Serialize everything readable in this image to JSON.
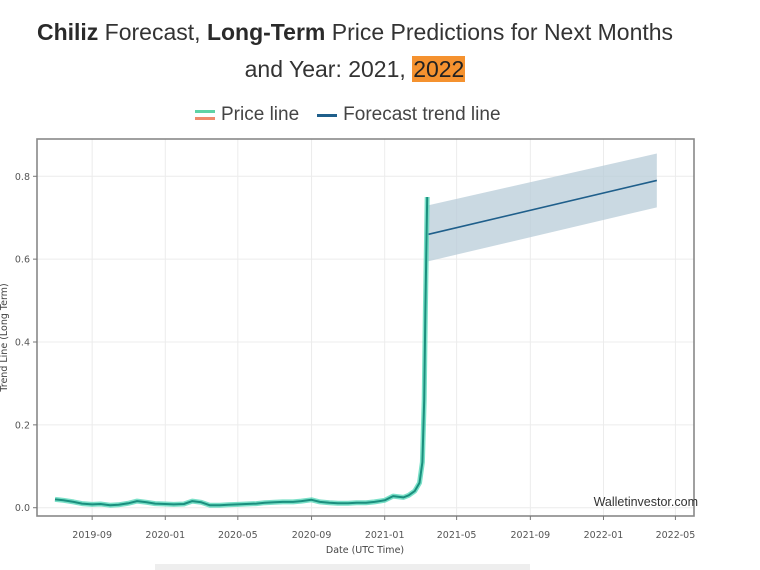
{
  "header": {
    "title_parts": [
      {
        "text": "Chiliz",
        "style": "bold"
      },
      {
        "text": " Forecast, ",
        "style": "normal"
      },
      {
        "text": "Long-Term",
        "style": "bold"
      },
      {
        "text": " Price Predictions for Next Months",
        "style": "normal"
      },
      {
        "text": "and Year: 2021, ",
        "style": "normal",
        "newline": true
      },
      {
        "text": "2022",
        "style": "highlight"
      }
    ],
    "highlight_color": "#f5922f"
  },
  "legend": {
    "items": [
      {
        "label": "Price line",
        "colors": [
          "#5fd3a6",
          "#f08a6c"
        ]
      },
      {
        "label": "Forecast trend line",
        "colors": [
          "#1f5f8b"
        ]
      }
    ]
  },
  "chart_data": {
    "type": "line",
    "title": "Chiliz Forecast, Long-Term Price Predictions for Next Months and Year: 2021, 2022",
    "xlabel": "Date (UTC Time)",
    "ylabel": "Trend Line (Long Term)",
    "ylim": [
      -0.02,
      0.89
    ],
    "xlim": [
      "2019-06-01",
      "2022-06-01"
    ],
    "yticks": [
      0.0,
      0.2,
      0.4,
      0.6,
      0.8
    ],
    "ytick_labels": [
      "0.0",
      "0.2",
      "0.4",
      "0.6",
      "0.8"
    ],
    "xticks": [
      "2019-09",
      "2020-01",
      "2020-05",
      "2020-09",
      "2021-01",
      "2021-05",
      "2021-09",
      "2022-01",
      "2022-05"
    ],
    "grid": true,
    "legend_position": "top-center",
    "watermark": "Walletinvestor.com",
    "colors": {
      "price": "#1a8f7e",
      "price_glow": "#4fd6b6",
      "forecast": "#1f5f8b",
      "band": "#b8ccd8"
    },
    "series": [
      {
        "name": "Price line",
        "x": [
          "2019-07-01",
          "2019-07-15",
          "2019-08-01",
          "2019-08-15",
          "2019-09-01",
          "2019-09-15",
          "2019-10-01",
          "2019-10-15",
          "2019-11-01",
          "2019-11-15",
          "2019-12-01",
          "2019-12-15",
          "2020-01-01",
          "2020-01-15",
          "2020-02-01",
          "2020-02-15",
          "2020-03-01",
          "2020-03-15",
          "2020-04-01",
          "2020-04-15",
          "2020-05-01",
          "2020-05-15",
          "2020-06-01",
          "2020-06-15",
          "2020-07-01",
          "2020-07-15",
          "2020-08-01",
          "2020-08-15",
          "2020-09-01",
          "2020-09-15",
          "2020-10-01",
          "2020-10-15",
          "2020-11-01",
          "2020-11-15",
          "2020-12-01",
          "2020-12-15",
          "2021-01-01",
          "2021-01-15",
          "2021-02-01",
          "2021-02-10",
          "2021-02-20",
          "2021-02-28",
          "2021-03-05",
          "2021-03-08",
          "2021-03-10",
          "2021-03-12",
          "2021-03-13"
        ],
        "values": [
          0.02,
          0.018,
          0.014,
          0.01,
          0.008,
          0.009,
          0.006,
          0.007,
          0.011,
          0.016,
          0.013,
          0.01,
          0.009,
          0.008,
          0.009,
          0.016,
          0.013,
          0.006,
          0.006,
          0.007,
          0.008,
          0.009,
          0.01,
          0.012,
          0.013,
          0.014,
          0.014,
          0.016,
          0.019,
          0.014,
          0.012,
          0.011,
          0.011,
          0.012,
          0.012,
          0.014,
          0.018,
          0.028,
          0.025,
          0.03,
          0.04,
          0.06,
          0.11,
          0.26,
          0.48,
          0.66,
          0.75
        ]
      },
      {
        "name": "Forecast trend line",
        "x": [
          "2021-03-15",
          "2022-03-31"
        ],
        "values": [
          0.66,
          0.79
        ],
        "band_upper": [
          0.73,
          0.855
        ],
        "band_lower": [
          0.595,
          0.725
        ]
      }
    ]
  },
  "footer": {}
}
